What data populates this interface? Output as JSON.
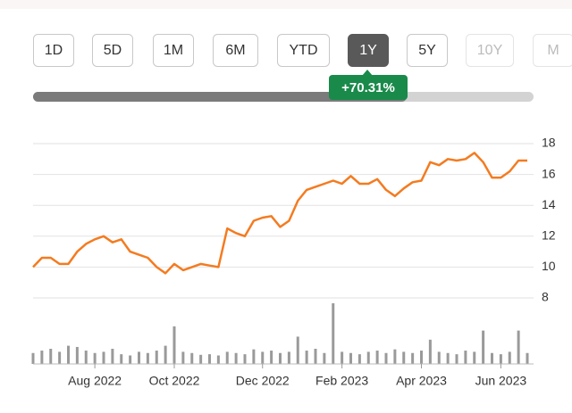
{
  "buttons": [
    {
      "label": "1D",
      "selected": false,
      "enabled": true
    },
    {
      "label": "5D",
      "selected": false,
      "enabled": true
    },
    {
      "label": "1M",
      "selected": false,
      "enabled": true
    },
    {
      "label": "6M",
      "selected": false,
      "enabled": true
    },
    {
      "label": "YTD",
      "selected": false,
      "enabled": true
    },
    {
      "label": "1Y",
      "selected": true,
      "enabled": true
    },
    {
      "label": "5Y",
      "selected": false,
      "enabled": true
    },
    {
      "label": "10Y",
      "selected": false,
      "enabled": false
    },
    {
      "label": "M",
      "selected": false,
      "enabled": false
    }
  ],
  "change": "+70.31%",
  "chart_data": {
    "type": "line",
    "categories": [
      null,
      null,
      null,
      null,
      null,
      null,
      null,
      "Aug 2022",
      null,
      null,
      null,
      null,
      null,
      null,
      null,
      null,
      "Oct 2022",
      null,
      null,
      null,
      null,
      null,
      null,
      null,
      null,
      null,
      "Dec 2022",
      null,
      null,
      null,
      null,
      null,
      null,
      null,
      null,
      "Feb 2023",
      null,
      null,
      null,
      null,
      null,
      null,
      null,
      null,
      "Apr 2023",
      null,
      null,
      null,
      null,
      null,
      null,
      null,
      null,
      "Jun 2023",
      null,
      null,
      null
    ],
    "series": [
      {
        "color": "#f47b20",
        "values": [
          10.0,
          10.6,
          10.6,
          10.2,
          10.2,
          11.0,
          11.5,
          11.8,
          12.0,
          11.6,
          11.8,
          11.0,
          10.8,
          10.6,
          10.0,
          9.6,
          10.2,
          9.8,
          10.0,
          10.2,
          10.1,
          10.0,
          12.5,
          12.2,
          12.0,
          13.0,
          13.2,
          13.3,
          12.6,
          13.0,
          14.3,
          15.0,
          15.2,
          15.4,
          15.6,
          15.4,
          15.9,
          15.4,
          15.4,
          15.7,
          15.0,
          14.6,
          15.1,
          15.5,
          15.6,
          16.8,
          16.6,
          17.0,
          16.9,
          17.0,
          17.4,
          16.8,
          15.8,
          15.8,
          16.2,
          16.9,
          16.9
        ]
      },
      {
        "type": "bar",
        "axis": "y2",
        "color": "#9a9a9a",
        "values": [
          18,
          22,
          25,
          20,
          30,
          28,
          22,
          18,
          20,
          25,
          16,
          14,
          20,
          18,
          22,
          30,
          62,
          20,
          18,
          15,
          16,
          14,
          20,
          18,
          16,
          24,
          20,
          22,
          18,
          20,
          45,
          22,
          25,
          18,
          100,
          20,
          18,
          16,
          20,
          22,
          18,
          24,
          20,
          18,
          22,
          40,
          20,
          18,
          16,
          22,
          20,
          55,
          18,
          16,
          20,
          55,
          18
        ]
      }
    ],
    "ylim": [
      8,
      18
    ],
    "yticks": [
      8,
      10,
      12,
      14,
      16,
      18
    ],
    "y2lim": [
      0,
      100
    ],
    "grid": true
  }
}
